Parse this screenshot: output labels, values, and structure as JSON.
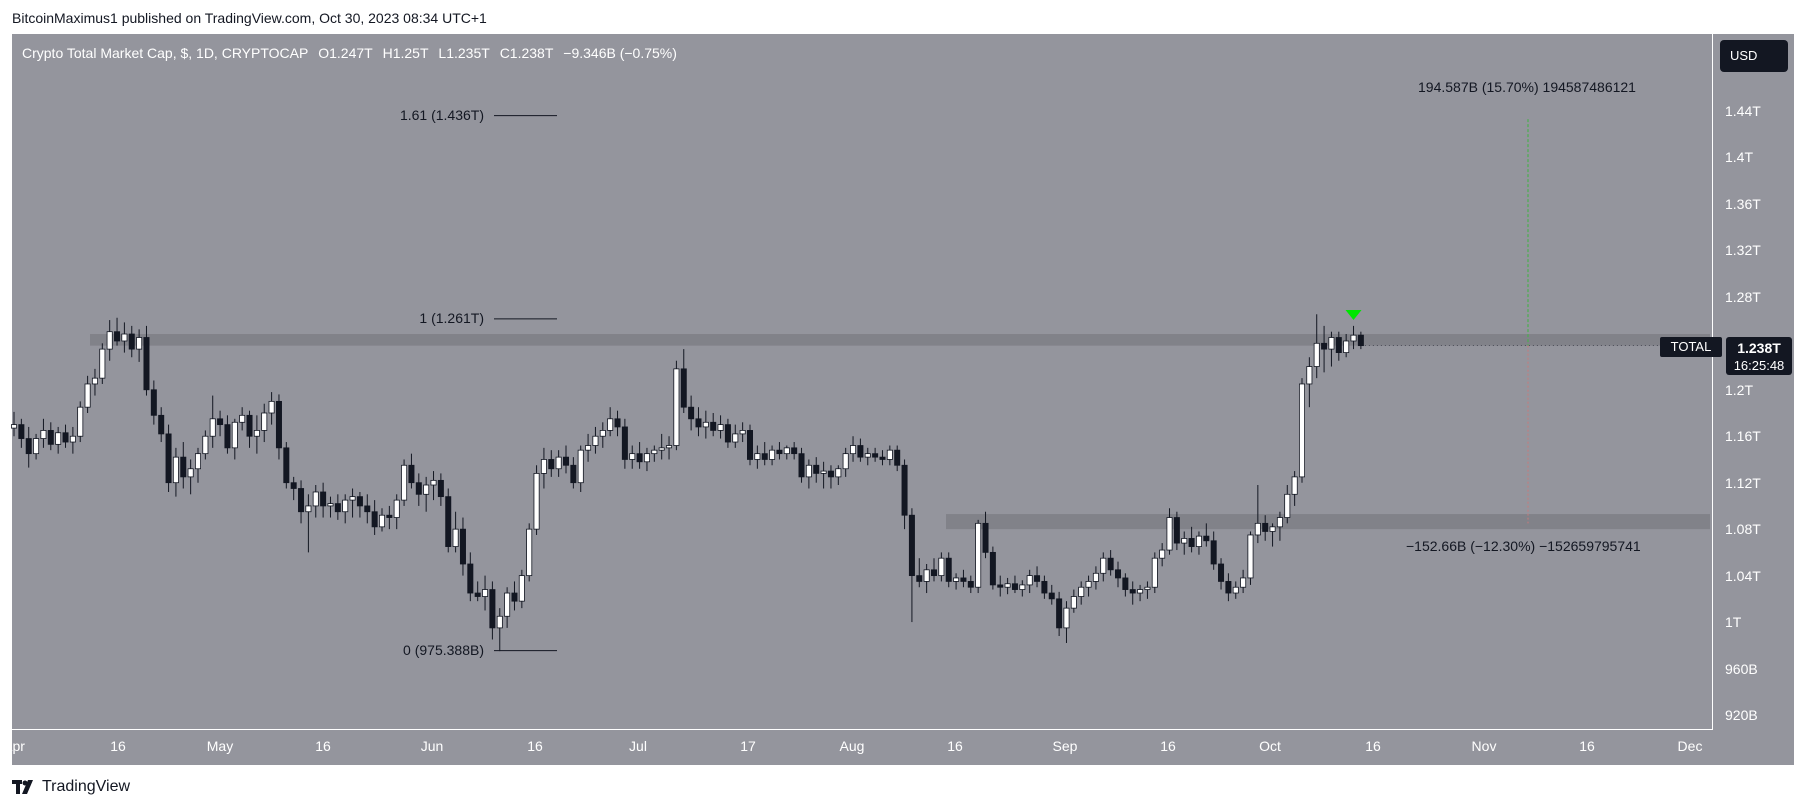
{
  "header": {
    "published": "BitcoinMaximus1 published on TradingView.com, Oct 30, 2023 08:34 UTC+1"
  },
  "legend": {
    "title": "Crypto Total Market Cap, $, 1D, CRYPTOCAP",
    "open": "O1.247T",
    "high": "H1.25T",
    "low": "L1.235T",
    "close": "C1.238T",
    "change": "−9.346B (−0.75%)"
  },
  "currency_button": "USD",
  "price_tag": {
    "symbol": "TOTAL",
    "price": "1.238T",
    "countdown": "16:25:48"
  },
  "footer": {
    "brand": "TradingView",
    "logo_icon": "tradingview-logo-icon"
  },
  "colors": {
    "background": "#94959d",
    "zone": "#7e7f86",
    "candle_up": "#ffffff",
    "candle_down": "#131722",
    "target_line": "#4caf50",
    "stop_line": "#c87a7a",
    "arrow": "#00e600"
  },
  "chart_data": {
    "type": "candlestick",
    "title": "Crypto Total Market Cap, $, 1D, CRYPTOCAP",
    "x_ticks": [
      "Apr",
      "16",
      "May",
      "16",
      "Jun",
      "16",
      "Jul",
      "17",
      "Aug",
      "16",
      "Sep",
      "16",
      "Oct",
      "16",
      "Nov",
      "16",
      "Dec"
    ],
    "y_ticks": [
      "1.44T",
      "1.4T",
      "1.36T",
      "1.32T",
      "1.28T",
      "1.2T",
      "1.16T",
      "1.12T",
      "1.08T",
      "1.04T",
      "1T",
      "960B",
      "920B"
    ],
    "ylim": [
      900,
      1480
    ],
    "fib_levels": [
      {
        "label": "1.61 (1.436T)",
        "value": 1436
      },
      {
        "label": "1 (1.261T)",
        "value": 1261
      },
      {
        "label": "0 (975.388B)",
        "value": 975.388
      }
    ],
    "resistance_zone": [
      1238,
      1248
    ],
    "support_zone": [
      1080,
      1093
    ],
    "target_annotation": "194.587B (15.70%) 194587486121",
    "target_value": 1433,
    "stop_annotation": "−152.66B (−12.30%) −152659795741",
    "stop_value": 1085,
    "last_price": 1238,
    "candles": [
      [
        1167,
        1181,
        1160,
        1170
      ],
      [
        1170,
        1175,
        1150,
        1158
      ],
      [
        1158,
        1168,
        1133,
        1145
      ],
      [
        1145,
        1162,
        1140,
        1158
      ],
      [
        1158,
        1175,
        1150,
        1165
      ],
      [
        1165,
        1172,
        1148,
        1153
      ],
      [
        1153,
        1168,
        1145,
        1163
      ],
      [
        1163,
        1170,
        1150,
        1155
      ],
      [
        1155,
        1168,
        1145,
        1160
      ],
      [
        1160,
        1190,
        1155,
        1185
      ],
      [
        1185,
        1212,
        1180,
        1205
      ],
      [
        1205,
        1218,
        1195,
        1210
      ],
      [
        1210,
        1240,
        1205,
        1235
      ],
      [
        1235,
        1260,
        1225,
        1250
      ],
      [
        1250,
        1262,
        1238,
        1242
      ],
      [
        1242,
        1258,
        1232,
        1248
      ],
      [
        1248,
        1255,
        1228,
        1235
      ],
      [
        1235,
        1252,
        1224,
        1245
      ],
      [
        1245,
        1255,
        1195,
        1200
      ],
      [
        1200,
        1208,
        1170,
        1178
      ],
      [
        1178,
        1185,
        1155,
        1162
      ],
      [
        1162,
        1170,
        1112,
        1120
      ],
      [
        1120,
        1150,
        1108,
        1142
      ],
      [
        1142,
        1155,
        1115,
        1125
      ],
      [
        1125,
        1140,
        1110,
        1132
      ],
      [
        1132,
        1150,
        1120,
        1145
      ],
      [
        1145,
        1165,
        1140,
        1160
      ],
      [
        1160,
        1195,
        1150,
        1175
      ],
      [
        1175,
        1182,
        1160,
        1170
      ],
      [
        1170,
        1178,
        1145,
        1150
      ],
      [
        1150,
        1175,
        1140,
        1172
      ],
      [
        1172,
        1185,
        1165,
        1178
      ],
      [
        1178,
        1182,
        1150,
        1160
      ],
      [
        1160,
        1178,
        1145,
        1165
      ],
      [
        1165,
        1188,
        1155,
        1180
      ],
      [
        1180,
        1198,
        1170,
        1190
      ],
      [
        1190,
        1196,
        1140,
        1150
      ],
      [
        1150,
        1155,
        1115,
        1120
      ],
      [
        1120,
        1125,
        1105,
        1115
      ],
      [
        1115,
        1122,
        1085,
        1095
      ],
      [
        1095,
        1110,
        1060,
        1100
      ],
      [
        1100,
        1118,
        1090,
        1112
      ],
      [
        1112,
        1120,
        1090,
        1100
      ],
      [
        1100,
        1108,
        1090,
        1102
      ],
      [
        1102,
        1110,
        1088,
        1095
      ],
      [
        1095,
        1110,
        1085,
        1105
      ],
      [
        1105,
        1115,
        1090,
        1108
      ],
      [
        1108,
        1112,
        1090,
        1100
      ],
      [
        1100,
        1110,
        1085,
        1095
      ],
      [
        1095,
        1105,
        1075,
        1082
      ],
      [
        1082,
        1098,
        1078,
        1092
      ],
      [
        1092,
        1100,
        1080,
        1090
      ],
      [
        1090,
        1110,
        1080,
        1105
      ],
      [
        1105,
        1140,
        1100,
        1135
      ],
      [
        1135,
        1145,
        1115,
        1120
      ],
      [
        1120,
        1128,
        1100,
        1110
      ],
      [
        1110,
        1125,
        1095,
        1118
      ],
      [
        1118,
        1130,
        1105,
        1122
      ],
      [
        1122,
        1128,
        1100,
        1108
      ],
      [
        1108,
        1115,
        1060,
        1065
      ],
      [
        1065,
        1095,
        1060,
        1080
      ],
      [
        1080,
        1090,
        1040,
        1050
      ],
      [
        1050,
        1060,
        1018,
        1025
      ],
      [
        1025,
        1035,
        1018,
        1022
      ],
      [
        1022,
        1040,
        1010,
        1028
      ],
      [
        1028,
        1035,
        985,
        995
      ],
      [
        995,
        1012,
        975,
        1005
      ],
      [
        1005,
        1030,
        995,
        1025
      ],
      [
        1025,
        1035,
        1010,
        1018
      ],
      [
        1018,
        1045,
        1012,
        1040
      ],
      [
        1040,
        1085,
        1035,
        1080
      ],
      [
        1080,
        1135,
        1075,
        1128
      ],
      [
        1128,
        1150,
        1115,
        1140
      ],
      [
        1140,
        1148,
        1125,
        1132
      ],
      [
        1132,
        1148,
        1125,
        1142
      ],
      [
        1142,
        1152,
        1128,
        1135
      ],
      [
        1135,
        1142,
        1115,
        1120
      ],
      [
        1120,
        1152,
        1112,
        1148
      ],
      [
        1148,
        1162,
        1138,
        1152
      ],
      [
        1152,
        1168,
        1145,
        1160
      ],
      [
        1160,
        1172,
        1150,
        1165
      ],
      [
        1165,
        1185,
        1160,
        1175
      ],
      [
        1175,
        1182,
        1160,
        1168
      ],
      [
        1168,
        1175,
        1132,
        1140
      ],
      [
        1140,
        1152,
        1132,
        1145
      ],
      [
        1145,
        1155,
        1132,
        1138
      ],
      [
        1138,
        1150,
        1130,
        1145
      ],
      [
        1145,
        1152,
        1138,
        1148
      ],
      [
        1148,
        1162,
        1140,
        1150
      ],
      [
        1150,
        1160,
        1140,
        1152
      ],
      [
        1152,
        1225,
        1148,
        1218
      ],
      [
        1218,
        1235,
        1180,
        1185
      ],
      [
        1185,
        1195,
        1165,
        1175
      ],
      [
        1175,
        1185,
        1160,
        1168
      ],
      [
        1168,
        1182,
        1158,
        1172
      ],
      [
        1172,
        1180,
        1160,
        1165
      ],
      [
        1165,
        1178,
        1158,
        1170
      ],
      [
        1170,
        1175,
        1150,
        1155
      ],
      [
        1155,
        1170,
        1150,
        1162
      ],
      [
        1162,
        1172,
        1155,
        1165
      ],
      [
        1165,
        1170,
        1135,
        1140
      ],
      [
        1140,
        1152,
        1132,
        1145
      ],
      [
        1145,
        1155,
        1135,
        1140
      ],
      [
        1140,
        1152,
        1135,
        1148
      ],
      [
        1148,
        1155,
        1140,
        1145
      ],
      [
        1145,
        1152,
        1140,
        1150
      ],
      [
        1150,
        1155,
        1140,
        1145
      ],
      [
        1145,
        1150,
        1120,
        1125
      ],
      [
        1125,
        1140,
        1115,
        1135
      ],
      [
        1135,
        1142,
        1120,
        1128
      ],
      [
        1128,
        1138,
        1115,
        1130
      ],
      [
        1130,
        1135,
        1115,
        1125
      ],
      [
        1125,
        1135,
        1118,
        1132
      ],
      [
        1132,
        1150,
        1125,
        1145
      ],
      [
        1145,
        1160,
        1138,
        1152
      ],
      [
        1152,
        1158,
        1138,
        1142
      ],
      [
        1142,
        1150,
        1135,
        1145
      ],
      [
        1145,
        1150,
        1138,
        1142
      ],
      [
        1142,
        1148,
        1135,
        1140
      ],
      [
        1140,
        1152,
        1135,
        1148
      ],
      [
        1148,
        1152,
        1130,
        1135
      ],
      [
        1135,
        1140,
        1080,
        1092
      ],
      [
        1092,
        1098,
        1000,
        1040
      ],
      [
        1040,
        1055,
        1030,
        1035
      ],
      [
        1035,
        1050,
        1025,
        1045
      ],
      [
        1045,
        1055,
        1035,
        1040
      ],
      [
        1040,
        1060,
        1035,
        1055
      ],
      [
        1055,
        1060,
        1030,
        1035
      ],
      [
        1035,
        1042,
        1028,
        1038
      ],
      [
        1038,
        1045,
        1030,
        1035
      ],
      [
        1035,
        1040,
        1025,
        1030
      ],
      [
        1030,
        1088,
        1025,
        1085
      ],
      [
        1085,
        1095,
        1055,
        1060
      ],
      [
        1060,
        1065,
        1028,
        1032
      ],
      [
        1032,
        1040,
        1022,
        1030
      ],
      [
        1030,
        1038,
        1024,
        1033
      ],
      [
        1033,
        1040,
        1025,
        1028
      ],
      [
        1028,
        1036,
        1022,
        1032
      ],
      [
        1032,
        1045,
        1025,
        1040
      ],
      [
        1040,
        1048,
        1030,
        1035
      ],
      [
        1035,
        1040,
        1020,
        1025
      ],
      [
        1025,
        1032,
        1015,
        1020
      ],
      [
        1020,
        1026,
        988,
        995
      ],
      [
        995,
        1018,
        982,
        1012
      ],
      [
        1012,
        1028,
        1008,
        1022
      ],
      [
        1022,
        1035,
        1015,
        1030
      ],
      [
        1030,
        1040,
        1022,
        1035
      ],
      [
        1035,
        1048,
        1028,
        1042
      ],
      [
        1042,
        1060,
        1035,
        1055
      ],
      [
        1055,
        1062,
        1040,
        1045
      ],
      [
        1045,
        1052,
        1030,
        1038
      ],
      [
        1038,
        1042,
        1022,
        1028
      ],
      [
        1028,
        1035,
        1015,
        1025
      ],
      [
        1025,
        1032,
        1018,
        1028
      ],
      [
        1028,
        1035,
        1020,
        1030
      ],
      [
        1030,
        1060,
        1025,
        1055
      ],
      [
        1055,
        1068,
        1048,
        1062
      ],
      [
        1062,
        1098,
        1058,
        1090
      ],
      [
        1090,
        1095,
        1062,
        1068
      ],
      [
        1068,
        1078,
        1058,
        1072
      ],
      [
        1072,
        1082,
        1060,
        1065
      ],
      [
        1065,
        1078,
        1058,
        1074
      ],
      [
        1074,
        1085,
        1065,
        1070
      ],
      [
        1070,
        1078,
        1045,
        1050
      ],
      [
        1050,
        1055,
        1028,
        1035
      ],
      [
        1035,
        1042,
        1018,
        1025
      ],
      [
        1025,
        1035,
        1020,
        1030
      ],
      [
        1030,
        1045,
        1025,
        1038
      ],
      [
        1038,
        1078,
        1032,
        1075
      ],
      [
        1075,
        1118,
        1068,
        1085
      ],
      [
        1085,
        1092,
        1070,
        1078
      ],
      [
        1078,
        1085,
        1065,
        1082
      ],
      [
        1082,
        1095,
        1070,
        1090
      ],
      [
        1090,
        1118,
        1085,
        1110
      ],
      [
        1110,
        1130,
        1100,
        1125
      ],
      [
        1125,
        1210,
        1120,
        1205
      ],
      [
        1205,
        1228,
        1185,
        1220
      ],
      [
        1220,
        1265,
        1210,
        1240
      ],
      [
        1240,
        1255,
        1215,
        1235
      ],
      [
        1235,
        1250,
        1220,
        1245
      ],
      [
        1245,
        1250,
        1225,
        1232
      ],
      [
        1232,
        1248,
        1228,
        1242
      ],
      [
        1242,
        1255,
        1235,
        1247
      ],
      [
        1247,
        1250,
        1235,
        1238
      ]
    ]
  }
}
